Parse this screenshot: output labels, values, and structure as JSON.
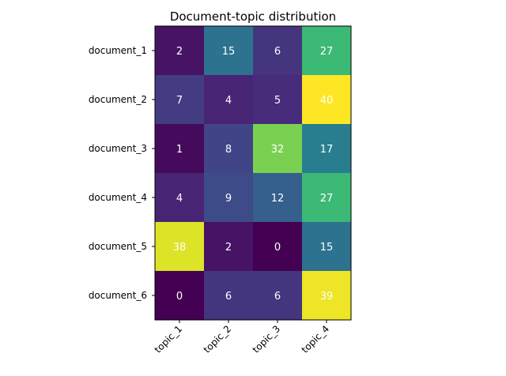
{
  "chart_data": {
    "type": "heatmap",
    "title": "Document-topic distribution",
    "xlabel": "",
    "ylabel": "",
    "x_categories": [
      "topic_1",
      "topic_2",
      "topic_3",
      "topic_4"
    ],
    "y_categories": [
      "document_1",
      "document_2",
      "document_3",
      "document_4",
      "document_5",
      "document_6"
    ],
    "values": [
      [
        2,
        15,
        6,
        27
      ],
      [
        7,
        4,
        5,
        40
      ],
      [
        1,
        8,
        32,
        17
      ],
      [
        4,
        9,
        12,
        27
      ],
      [
        38,
        2,
        0,
        15
      ],
      [
        0,
        6,
        6,
        39
      ]
    ],
    "colormap": "viridis",
    "value_range": [
      0,
      40
    ],
    "grid": false,
    "legend": "none",
    "x_tick_rotation": "45deg",
    "annotation_color_light": "#ffffff",
    "annotation_color_dark": "#000000"
  }
}
